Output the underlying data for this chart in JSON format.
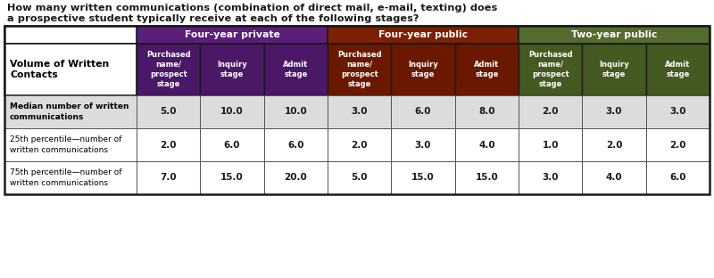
{
  "title_line1": "How many written communications (combination of direct mail, e-mail, texting) does",
  "title_line2": "a prospective student typically receive at each of the following stages?",
  "title_color": "#1a1a1a",
  "col_groups": [
    {
      "label": "Four-year private",
      "color": "#5B1F7A",
      "cols": 3
    },
    {
      "label": "Four-year public",
      "color": "#7B2000",
      "cols": 3
    },
    {
      "label": "Two-year public",
      "color": "#556B2F",
      "cols": 3
    }
  ],
  "sub_headers": [
    "Purchased\nname/\nprospect\nstage",
    "Inquiry\nstage",
    "Admit\nstage",
    "Purchased\nname/\nprospect\nstage",
    "Inquiry\nstage",
    "Admit\nstage",
    "Purchased\nname/\nprospect\nstage",
    "Inquiry\nstage",
    "Admit\nstage"
  ],
  "sub_header_colors_dark": [
    "#4A1866",
    "#4A1866",
    "#4A1866",
    "#6A1800",
    "#6A1800",
    "#6A1800",
    "#445A20",
    "#445A20",
    "#445A20"
  ],
  "row_header": "Volume of Written\nContacts",
  "rows": [
    {
      "label": "Median number of written\ncommunications",
      "values": [
        "5.0",
        "10.0",
        "10.0",
        "3.0",
        "6.0",
        "8.0",
        "2.0",
        "3.0",
        "3.0"
      ],
      "bold": true,
      "bg": "#DCDCDC"
    },
    {
      "label": "25th percentile—number of\nwritten communications",
      "values": [
        "2.0",
        "6.0",
        "6.0",
        "2.0",
        "3.0",
        "4.0",
        "1.0",
        "2.0",
        "2.0"
      ],
      "bold": false,
      "bg": "#FFFFFF"
    },
    {
      "label": "75th percentile—number of\nwritten communications",
      "values": [
        "7.0",
        "15.0",
        "20.0",
        "5.0",
        "15.0",
        "15.0",
        "3.0",
        "4.0",
        "6.0"
      ],
      "bold": false,
      "bg": "#FFFFFF"
    }
  ],
  "value_color": "#1a1a1a",
  "border_color": "#333333",
  "outer_border_color": "#333333",
  "fig_width": 8.0,
  "fig_height": 3.12,
  "dpi": 100
}
